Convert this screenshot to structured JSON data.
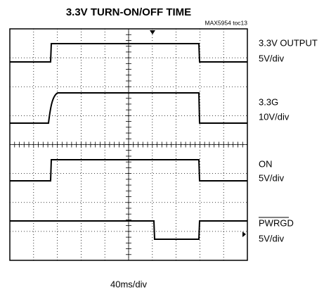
{
  "title": "3.3V TURN-ON/OFF TIME",
  "part_label": "MAX5954 toc13",
  "channels": [
    {
      "name": "3.3V OUTPUT",
      "scale": "5V/div"
    },
    {
      "name": "3.3G",
      "scale": "10V/div"
    },
    {
      "name": "ON",
      "scale": "5V/div"
    },
    {
      "name": "PWRGD",
      "scale": "5V/div"
    }
  ],
  "timebase": "40ms/div"
}
